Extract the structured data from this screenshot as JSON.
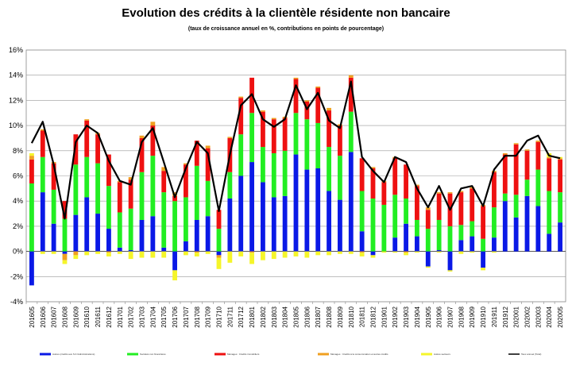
{
  "header": {
    "title": "Evolution  des crédits à la clientèle résidente non bancaire",
    "subtitle": "(taux de croissance annuel en %, contributions en points de pourcentage)"
  },
  "colors": {
    "s1": "#0a19e6",
    "s2": "#22ee22",
    "s3": "#ee1111",
    "s4": "#f0a020",
    "s5": "#f5f52a",
    "total": "#000000"
  },
  "chart_data": {
    "type": "bar",
    "stacked": true,
    "ylim": [
      -4,
      16
    ],
    "y_ticks": [
      -4,
      -2,
      0,
      2,
      4,
      6,
      8,
      10,
      12,
      14,
      16
    ],
    "y_tick_labels": [
      "-4%",
      "-2%",
      "0%",
      "2%",
      "4%",
      "6%",
      "8%",
      "10%",
      "12%",
      "14%",
      "16%"
    ],
    "grid": "horizontal",
    "legend_position": "bottom",
    "categories": [
      "201605",
      "201606",
      "201607",
      "201608",
      "201609",
      "201610",
      "201611",
      "201612",
      "201701",
      "201702",
      "201703",
      "201704",
      "201705",
      "201706",
      "201707",
      "201708",
      "201709",
      "201710",
      "201711",
      "201712",
      "201801",
      "201802",
      "201803",
      "201804",
      "201805",
      "201806",
      "201807",
      "201808",
      "201809",
      "201810",
      "201811",
      "201812",
      "201901",
      "201902",
      "201903",
      "201904",
      "201905",
      "201906",
      "201907",
      "201908",
      "201909",
      "201910",
      "201911",
      "201912",
      "202001",
      "202002",
      "202003",
      "202004",
      "202005"
    ],
    "series": [
      {
        "name": "Autres (crédits aux S.F./Administrations)",
        "color": "#0a19e6",
        "values": [
          -2.7,
          4.7,
          2.2,
          -0.2,
          2.9,
          4.3,
          3.0,
          1.8,
          0.3,
          0.1,
          2.5,
          2.8,
          0.3,
          -1.5,
          0.8,
          2.5,
          2.8,
          -0.3,
          4.2,
          6.0,
          7.1,
          5.5,
          4.3,
          4.4,
          7.7,
          6.5,
          6.6,
          4.8,
          4.1,
          7.9,
          1.6,
          -0.3,
          0.0,
          1.1,
          2.2,
          1.2,
          -1.2,
          0.1,
          -1.5,
          0.9,
          1.2,
          -1.3,
          1.1,
          4.0,
          2.7,
          4.4,
          3.6,
          1.4,
          2.3
        ]
      },
      {
        "name": "Sociétés non financières",
        "color": "#22ee22",
        "values": [
          5.4,
          2.8,
          2.7,
          2.6,
          4.0,
          3.2,
          4.0,
          3.4,
          2.8,
          3.3,
          3.8,
          4.8,
          4.4,
          4.0,
          3.5,
          4.3,
          2.8,
          1.8,
          2.1,
          3.3,
          3.9,
          2.8,
          3.5,
          3.6,
          3.3,
          4.0,
          3.6,
          3.5,
          3.5,
          3.2,
          3.2,
          4.2,
          3.7,
          3.4,
          2.0,
          1.3,
          1.8,
          2.4,
          2.0,
          1.2,
          1.2,
          1.0,
          2.4,
          0.6,
          1.8,
          1.3,
          2.9,
          3.4,
          2.4
        ]
      },
      {
        "name": "Ménages : Crédits immobiliers",
        "color": "#ee1111",
        "values": [
          1.9,
          2.1,
          2.1,
          1.4,
          2.4,
          2.9,
          2.3,
          2.5,
          2.4,
          2.3,
          2.7,
          2.4,
          1.7,
          0.4,
          2.6,
          2.0,
          2.6,
          1.5,
          2.7,
          2.9,
          2.8,
          2.8,
          2.7,
          2.6,
          2.7,
          1.4,
          2.8,
          2.9,
          2.4,
          2.7,
          2.6,
          2.4,
          1.8,
          2.9,
          2.7,
          2.7,
          1.5,
          2.1,
          2.6,
          2.6,
          2.6,
          2.6,
          2.8,
          3.1,
          4.0,
          2.3,
          2.2,
          2.6,
          2.6
        ]
      },
      {
        "name": "Ménages : Crédits à la consommation et autres crédits",
        "color": "#f0a020",
        "values": [
          0.3,
          0.1,
          0.1,
          -0.5,
          -0.3,
          0.1,
          0.1,
          -0.1,
          0.1,
          0.2,
          0.2,
          0.3,
          0.3,
          0.3,
          0.1,
          -0.1,
          0.2,
          -0.2,
          0.1,
          0.1,
          -0.1,
          0.1,
          0.1,
          0.1,
          0.1,
          0.1,
          0.1,
          0.2,
          0.1,
          0.2,
          -0.1,
          0.1,
          0.1,
          0.1,
          -0.1,
          0.1,
          0.2,
          0.1,
          0.1,
          0.1,
          0.1,
          0.1,
          0.1,
          0.1,
          0.1,
          0.1,
          0.1,
          0.1,
          0.1
        ]
      },
      {
        "name": "Autres secteurs",
        "color": "#f5f52a",
        "values": [
          0.2,
          -0.2,
          -0.2,
          -0.3,
          -0.3,
          -0.3,
          -0.2,
          -0.3,
          -0.2,
          -0.6,
          -0.5,
          -0.5,
          -0.5,
          -0.8,
          -0.3,
          -0.3,
          -0.2,
          -0.9,
          -0.9,
          -0.4,
          -0.9,
          -0.7,
          -0.6,
          -0.5,
          -0.4,
          -0.5,
          -0.3,
          -0.3,
          -0.2,
          -0.2,
          -0.3,
          -0.2,
          -0.1,
          -0.1,
          -0.2,
          -0.1,
          -0.1,
          -0.1,
          -0.1,
          -0.2,
          -0.1,
          -0.2,
          -0.1,
          0.0,
          0.0,
          0.0,
          0.0,
          0.3,
          0.1
        ]
      }
    ],
    "line": {
      "name": "Taux annuel (Total)",
      "color": "#000000",
      "values": [
        8.6,
        10.3,
        6.9,
        2.6,
        8.7,
        10.0,
        9.4,
        7.2,
        5.6,
        5.3,
        8.7,
        9.8,
        7.1,
        4.3,
        6.6,
        8.7,
        7.8,
        3.2,
        7.7,
        11.6,
        12.5,
        10.5,
        9.9,
        10.5,
        13.2,
        11.3,
        12.6,
        10.4,
        9.8,
        13.5,
        7.5,
        6.4,
        5.5,
        7.5,
        7.1,
        5.0,
        3.5,
        5.2,
        3.3,
        5.0,
        5.2,
        3.6,
        6.5,
        7.6,
        7.6,
        8.8,
        9.2,
        7.6,
        7.4
      ]
    }
  }
}
